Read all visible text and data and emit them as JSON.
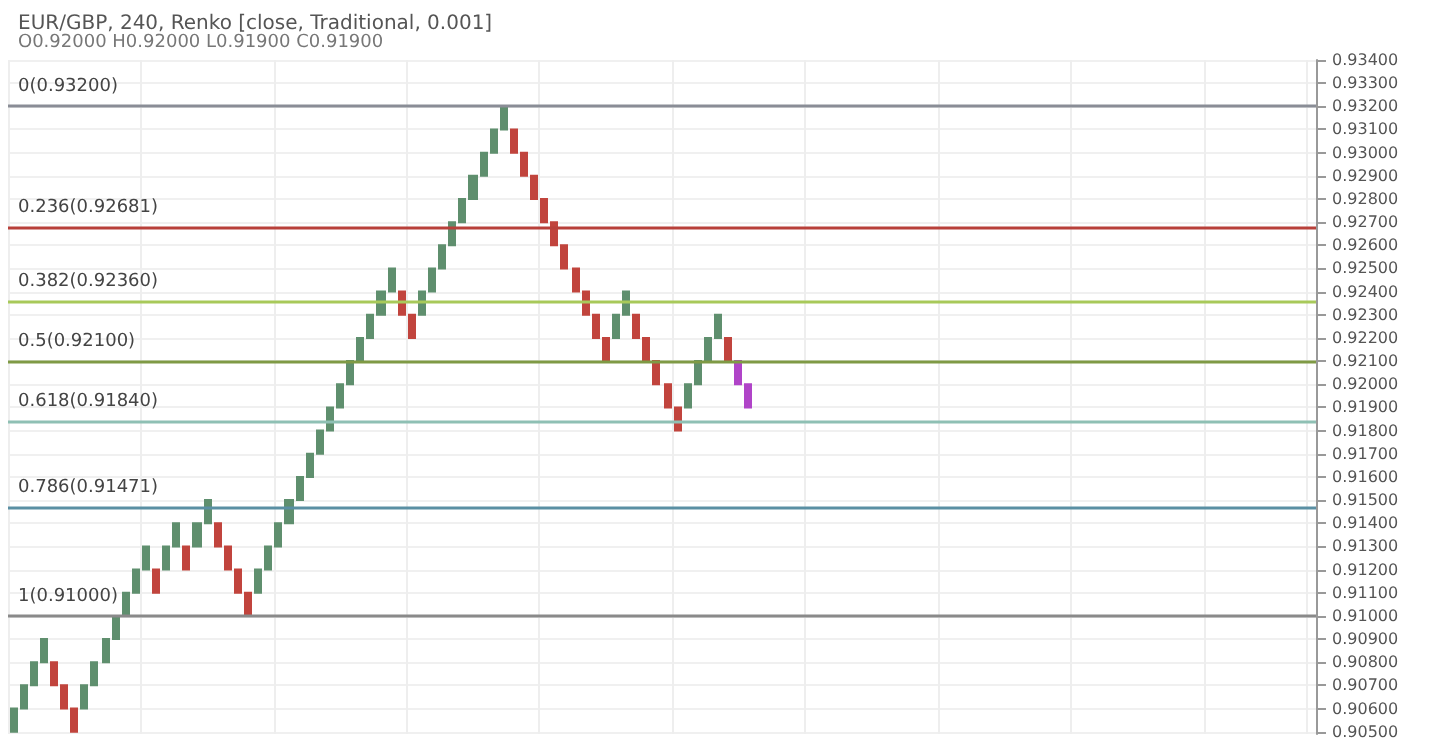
{
  "chart_data": {
    "type": "candlestick",
    "title": "EUR/GBP, 240, Renko [close, Traditional, 0.001]",
    "subtitle": "O0.92000 H0.92000 L0.91900 C0.91900",
    "categories": [
      null,
      null,
      null,
      null,
      null,
      null,
      null,
      null,
      null,
      null,
      null,
      null,
      null,
      null,
      null,
      null,
      null,
      null,
      null,
      null,
      null,
      null,
      null,
      null,
      null,
      null,
      null,
      null,
      null,
      null,
      null,
      null,
      null,
      null,
      null,
      null,
      null,
      null,
      null,
      null,
      null,
      null,
      null,
      null,
      null,
      null,
      null,
      null,
      null,
      null,
      null,
      null,
      null,
      null,
      null,
      null,
      null,
      null,
      null,
      null,
      null,
      null,
      null,
      null,
      null,
      null,
      null,
      null,
      null,
      null,
      null,
      null,
      null,
      null,
      null,
      null,
      null,
      null,
      null,
      null,
      null,
      null,
      null,
      null,
      null,
      null,
      null,
      null,
      null,
      null,
      null,
      null,
      null,
      null,
      null,
      null,
      null,
      null,
      null,
      null,
      null,
      null,
      null,
      null,
      null,
      null,
      null,
      null,
      null,
      null,
      null,
      null,
      null,
      null,
      null,
      null,
      null,
      null,
      null,
      null,
      null,
      null,
      null,
      null,
      null,
      null,
      null,
      null
    ],
    "ohlc": [
      [
        0.905,
        0.906,
        0.905,
        0.906
      ],
      [
        0.906,
        0.907,
        0.906,
        0.907
      ],
      [
        0.907,
        0.908,
        0.907,
        0.908
      ],
      [
        0.908,
        0.909,
        0.908,
        0.909
      ],
      [
        0.908,
        0.908,
        0.907,
        0.907
      ],
      [
        0.907,
        0.907,
        0.906,
        0.906
      ],
      [
        0.906,
        0.906,
        0.905,
        0.905
      ],
      [
        0.906,
        0.907,
        0.906,
        0.907
      ],
      [
        0.907,
        0.908,
        0.907,
        0.908
      ],
      [
        0.908,
        0.909,
        0.908,
        0.909
      ],
      [
        0.909,
        0.91,
        0.909,
        0.91
      ],
      [
        0.91,
        0.911,
        0.91,
        0.911
      ],
      [
        0.911,
        0.912,
        0.911,
        0.912
      ],
      [
        0.912,
        0.913,
        0.912,
        0.913
      ],
      [
        0.912,
        0.912,
        0.911,
        0.911
      ],
      [
        0.912,
        0.913,
        0.912,
        0.913
      ],
      [
        0.913,
        0.914,
        0.913,
        0.914
      ],
      [
        0.913,
        0.913,
        0.912,
        0.912
      ],
      [
        0.913,
        0.914,
        0.913,
        0.914
      ],
      [
        0.914,
        0.915,
        0.914,
        0.915
      ],
      [
        0.914,
        0.914,
        0.913,
        0.913
      ],
      [
        0.913,
        0.913,
        0.912,
        0.912
      ],
      [
        0.912,
        0.912,
        0.911,
        0.911
      ],
      [
        0.911,
        0.911,
        0.91,
        0.91
      ],
      [
        0.911,
        0.912,
        0.911,
        0.912
      ],
      [
        0.912,
        0.913,
        0.912,
        0.913
      ],
      [
        0.913,
        0.914,
        0.913,
        0.914
      ],
      [
        0.914,
        0.915,
        0.914,
        0.915
      ],
      [
        0.915,
        0.916,
        0.915,
        0.916
      ],
      [
        0.916,
        0.917,
        0.916,
        0.917
      ],
      [
        0.917,
        0.918,
        0.917,
        0.918
      ],
      [
        0.918,
        0.919,
        0.918,
        0.919
      ],
      [
        0.919,
        0.92,
        0.919,
        0.92
      ],
      [
        0.92,
        0.921,
        0.92,
        0.921
      ],
      [
        0.921,
        0.922,
        0.921,
        0.922
      ],
      [
        0.922,
        0.923,
        0.922,
        0.923
      ],
      [
        0.923,
        0.924,
        0.923,
        0.924
      ],
      [
        0.924,
        0.925,
        0.924,
        0.925
      ],
      [
        0.924,
        0.924,
        0.923,
        0.923
      ],
      [
        0.923,
        0.923,
        0.922,
        0.922
      ],
      [
        0.923,
        0.924,
        0.923,
        0.924
      ],
      [
        0.924,
        0.925,
        0.924,
        0.925
      ],
      [
        0.925,
        0.926,
        0.925,
        0.926
      ],
      [
        0.926,
        0.927,
        0.926,
        0.927
      ],
      [
        0.927,
        0.928,
        0.927,
        0.928
      ],
      [
        0.928,
        0.929,
        0.928,
        0.929
      ],
      [
        0.929,
        0.93,
        0.929,
        0.93
      ],
      [
        0.93,
        0.931,
        0.93,
        0.931
      ],
      [
        0.931,
        0.932,
        0.931,
        0.932
      ],
      [
        0.931,
        0.931,
        0.93,
        0.93
      ],
      [
        0.93,
        0.93,
        0.929,
        0.929
      ],
      [
        0.929,
        0.929,
        0.928,
        0.928
      ],
      [
        0.928,
        0.928,
        0.927,
        0.927
      ],
      [
        0.927,
        0.927,
        0.926,
        0.926
      ],
      [
        0.926,
        0.926,
        0.925,
        0.925
      ],
      [
        0.925,
        0.925,
        0.924,
        0.924
      ],
      [
        0.924,
        0.924,
        0.923,
        0.923
      ],
      [
        0.923,
        0.923,
        0.922,
        0.922
      ],
      [
        0.922,
        0.922,
        0.921,
        0.921
      ],
      [
        0.922,
        0.923,
        0.922,
        0.923
      ],
      [
        0.923,
        0.924,
        0.923,
        0.924
      ],
      [
        0.923,
        0.923,
        0.922,
        0.922
      ],
      [
        0.922,
        0.922,
        0.921,
        0.921
      ],
      [
        0.921,
        0.921,
        0.92,
        0.92
      ],
      [
        0.92,
        0.92,
        0.919,
        0.919
      ],
      [
        0.919,
        0.919,
        0.918,
        0.918
      ],
      [
        0.919,
        0.92,
        0.919,
        0.92
      ],
      [
        0.92,
        0.921,
        0.92,
        0.921
      ],
      [
        0.921,
        0.922,
        0.921,
        0.922
      ],
      [
        0.922,
        0.923,
        0.922,
        0.923
      ],
      [
        0.922,
        0.922,
        0.921,
        0.921
      ],
      [
        0.921,
        0.921,
        0.92,
        0.92
      ],
      [
        0.92,
        0.92,
        0.919,
        0.919
      ],
      null,
      null,
      null,
      null,
      null,
      null,
      null,
      null,
      null,
      null,
      null,
      null,
      null,
      null,
      null,
      null,
      null,
      null,
      null,
      null,
      null,
      null,
      null,
      null,
      null,
      null,
      null,
      null,
      null,
      null,
      null,
      null,
      null,
      null,
      null,
      null,
      null,
      null,
      null,
      null,
      null,
      null,
      null,
      null,
      null,
      null,
      null,
      null,
      null,
      null,
      null,
      null,
      null,
      null,
      null
    ],
    "colors": [
      "#5f8f6e",
      "#5f8f6e",
      "#5f8f6e",
      "#5f8f6e",
      "#c1443d",
      "#c1443d",
      "#c1443d",
      "#5f8f6e",
      "#5f8f6e",
      "#5f8f6e",
      "#5f8f6e",
      "#5f8f6e",
      "#5f8f6e",
      "#5f8f6e",
      "#c1443d",
      "#5f8f6e",
      "#5f8f6e",
      "#c1443d",
      "#5f8f6e",
      "#5f8f6e",
      "#c1443d",
      "#c1443d",
      "#c1443d",
      "#c1443d",
      "#5f8f6e",
      "#5f8f6e",
      "#5f8f6e",
      "#5f8f6e",
      "#5f8f6e",
      "#5f8f6e",
      "#5f8f6e",
      "#5f8f6e",
      "#5f8f6e",
      "#5f8f6e",
      "#5f8f6e",
      "#5f8f6e",
      "#5f8f6e",
      "#5f8f6e",
      "#c1443d",
      "#c1443d",
      "#5f8f6e",
      "#5f8f6e",
      "#5f8f6e",
      "#5f8f6e",
      "#5f8f6e",
      "#5f8f6e",
      "#5f8f6e",
      "#5f8f6e",
      "#5f8f6e",
      "#c1443d",
      "#c1443d",
      "#c1443d",
      "#c1443d",
      "#c1443d",
      "#c1443d",
      "#c1443d",
      "#c1443d",
      "#c1443d",
      "#c1443d",
      "#5f8f6e",
      "#5f8f6e",
      "#c1443d",
      "#c1443d",
      "#c1443d",
      "#c1443d",
      "#c1443d",
      "#5f8f6e",
      "#5f8f6e",
      "#5f8f6e",
      "#5f8f6e",
      "#c1443d",
      "#b044c8",
      "#b044c8",
      null,
      null,
      null,
      null,
      null,
      null,
      null,
      null,
      null,
      null,
      null,
      null,
      null,
      null,
      null,
      null,
      null,
      null,
      null,
      null,
      null,
      null,
      null,
      null,
      null,
      null,
      null,
      null,
      null,
      null,
      null,
      null,
      null,
      null,
      null,
      null,
      null,
      null,
      null,
      null,
      null,
      null,
      null,
      null,
      null,
      null,
      null,
      null,
      null,
      null,
      null,
      null,
      null,
      null,
      null
    ],
    "ylim": [
      0.9049,
      0.934
    ],
    "yticks": [
      {
        "value": 0.905,
        "label": "0.90500"
      },
      {
        "value": 0.906,
        "label": "0.90600"
      },
      {
        "value": 0.907,
        "label": "0.90700"
      },
      {
        "value": 0.908,
        "label": "0.90800"
      },
      {
        "value": 0.909,
        "label": "0.90900"
      },
      {
        "value": 0.91,
        "label": "0.91000"
      },
      {
        "value": 0.911,
        "label": "0.91100"
      },
      {
        "value": 0.912,
        "label": "0.91200"
      },
      {
        "value": 0.913,
        "label": "0.91300"
      },
      {
        "value": 0.914,
        "label": "0.91400"
      },
      {
        "value": 0.915,
        "label": "0.91500"
      },
      {
        "value": 0.916,
        "label": "0.91600"
      },
      {
        "value": 0.917,
        "label": "0.91700"
      },
      {
        "value": 0.918,
        "label": "0.91800"
      },
      {
        "value": 0.919,
        "label": "0.91900"
      },
      {
        "value": 0.92,
        "label": "0.92000"
      },
      {
        "value": 0.921,
        "label": "0.92100"
      },
      {
        "value": 0.922,
        "label": "0.92200"
      },
      {
        "value": 0.923,
        "label": "0.92300"
      },
      {
        "value": 0.924,
        "label": "0.92400"
      },
      {
        "value": 0.925,
        "label": "0.92500"
      },
      {
        "value": 0.926,
        "label": "0.92600"
      },
      {
        "value": 0.927,
        "label": "0.92700"
      },
      {
        "value": 0.928,
        "label": "0.92800"
      },
      {
        "value": 0.929,
        "label": "0.92900"
      },
      {
        "value": 0.93,
        "label": "0.93000"
      },
      {
        "value": 0.931,
        "label": "0.93100"
      },
      {
        "value": 0.932,
        "label": "0.93200"
      },
      {
        "value": 0.933,
        "label": "0.93300"
      },
      {
        "value": 0.934,
        "label": "0.93400"
      }
    ],
    "ref_lines": [
      {
        "axis": "y",
        "value": 0.932,
        "label": "0(0.93200)",
        "color": "#8a8d96"
      },
      {
        "axis": "y",
        "value": 0.92681,
        "label": "0.236(0.92681)",
        "color": "#b8403a"
      },
      {
        "axis": "y",
        "value": 0.9236,
        "label": "0.382(0.92360)",
        "color": "#a8c95a"
      },
      {
        "axis": "y",
        "value": 0.921,
        "label": "0.5(0.92100)",
        "color": "#7f9a45"
      },
      {
        "axis": "y",
        "value": 0.9184,
        "label": "0.618(0.91840)",
        "color": "#8fc0b4"
      },
      {
        "axis": "y",
        "value": 0.91471,
        "label": "0.786(0.91471)",
        "color": "#5a8fa3"
      },
      {
        "axis": "y",
        "value": 0.91,
        "label": "1(0.91000)",
        "color": "#8a8a8a"
      }
    ],
    "grid": true,
    "tick_labels": "y"
  }
}
